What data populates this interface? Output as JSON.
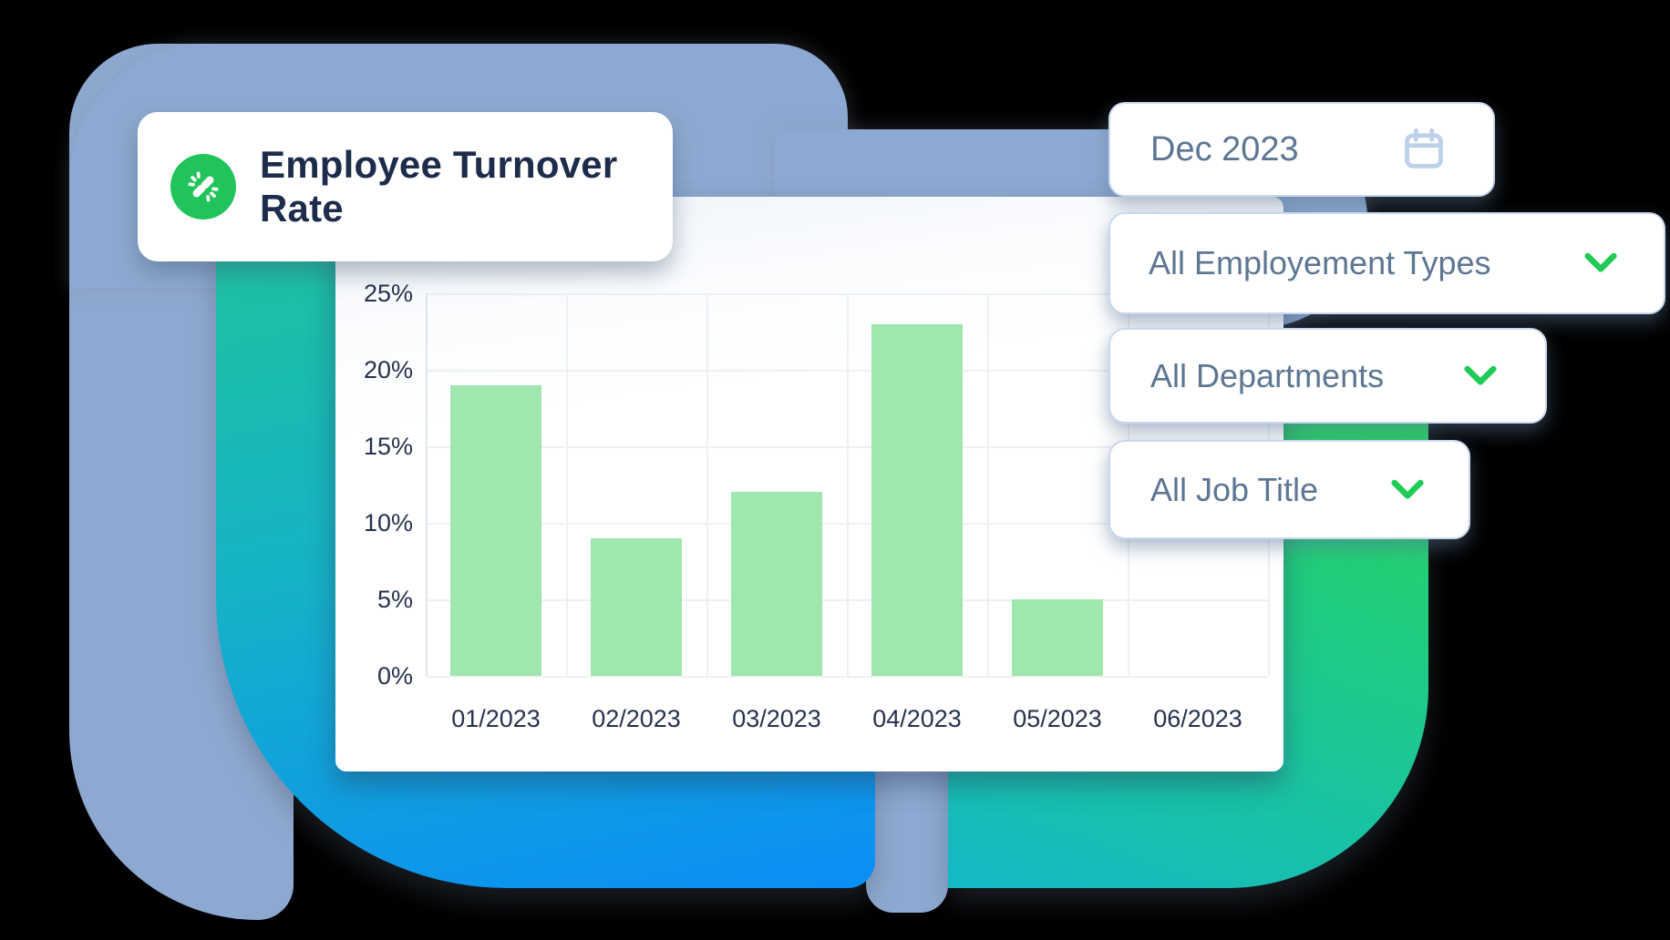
{
  "title_card": {
    "title": "Employee Turnover Rate",
    "icon": "broken-link-icon",
    "icon_bg": "#21c45a"
  },
  "filters": [
    {
      "label": "Dec 2023",
      "icon": "calendar-icon"
    },
    {
      "label": "All Employement Types",
      "icon": "chevron-down-icon"
    },
    {
      "label": "All Departments",
      "icon": "chevron-down-icon"
    },
    {
      "label": "All Job Title",
      "icon": "chevron-down-icon"
    }
  ],
  "chart_data": {
    "type": "bar",
    "title": "Employee Turnover Rate",
    "categories": [
      "01/2023",
      "02/2023",
      "03/2023",
      "04/2023",
      "05/2023",
      "06/2023"
    ],
    "values": [
      19,
      9,
      12,
      23,
      5,
      0
    ],
    "unit": "%",
    "xlabel": "",
    "ylabel": "",
    "ylim": [
      0,
      25
    ],
    "y_ticks": [
      "25%",
      "20%",
      "15%",
      "10%",
      "5%",
      "0%"
    ],
    "grid": true,
    "legend": false,
    "bar_color": "#9fe7ae"
  },
  "colors": {
    "accent_green": "#1ecb55",
    "bar_green": "#9fe7ae",
    "slate_blob": "#8ea9d1",
    "left_blob_gradient": [
      "#1ec29e",
      "#16b2c6",
      "#0a8ef7"
    ],
    "right_blob_gradient": [
      "#2bd750",
      "#1ec98b",
      "#14b9c6"
    ],
    "title_navy": "#1d2c4b",
    "filter_text": "#5d7693",
    "calendar_icon_blue": "#bdd2ea"
  }
}
